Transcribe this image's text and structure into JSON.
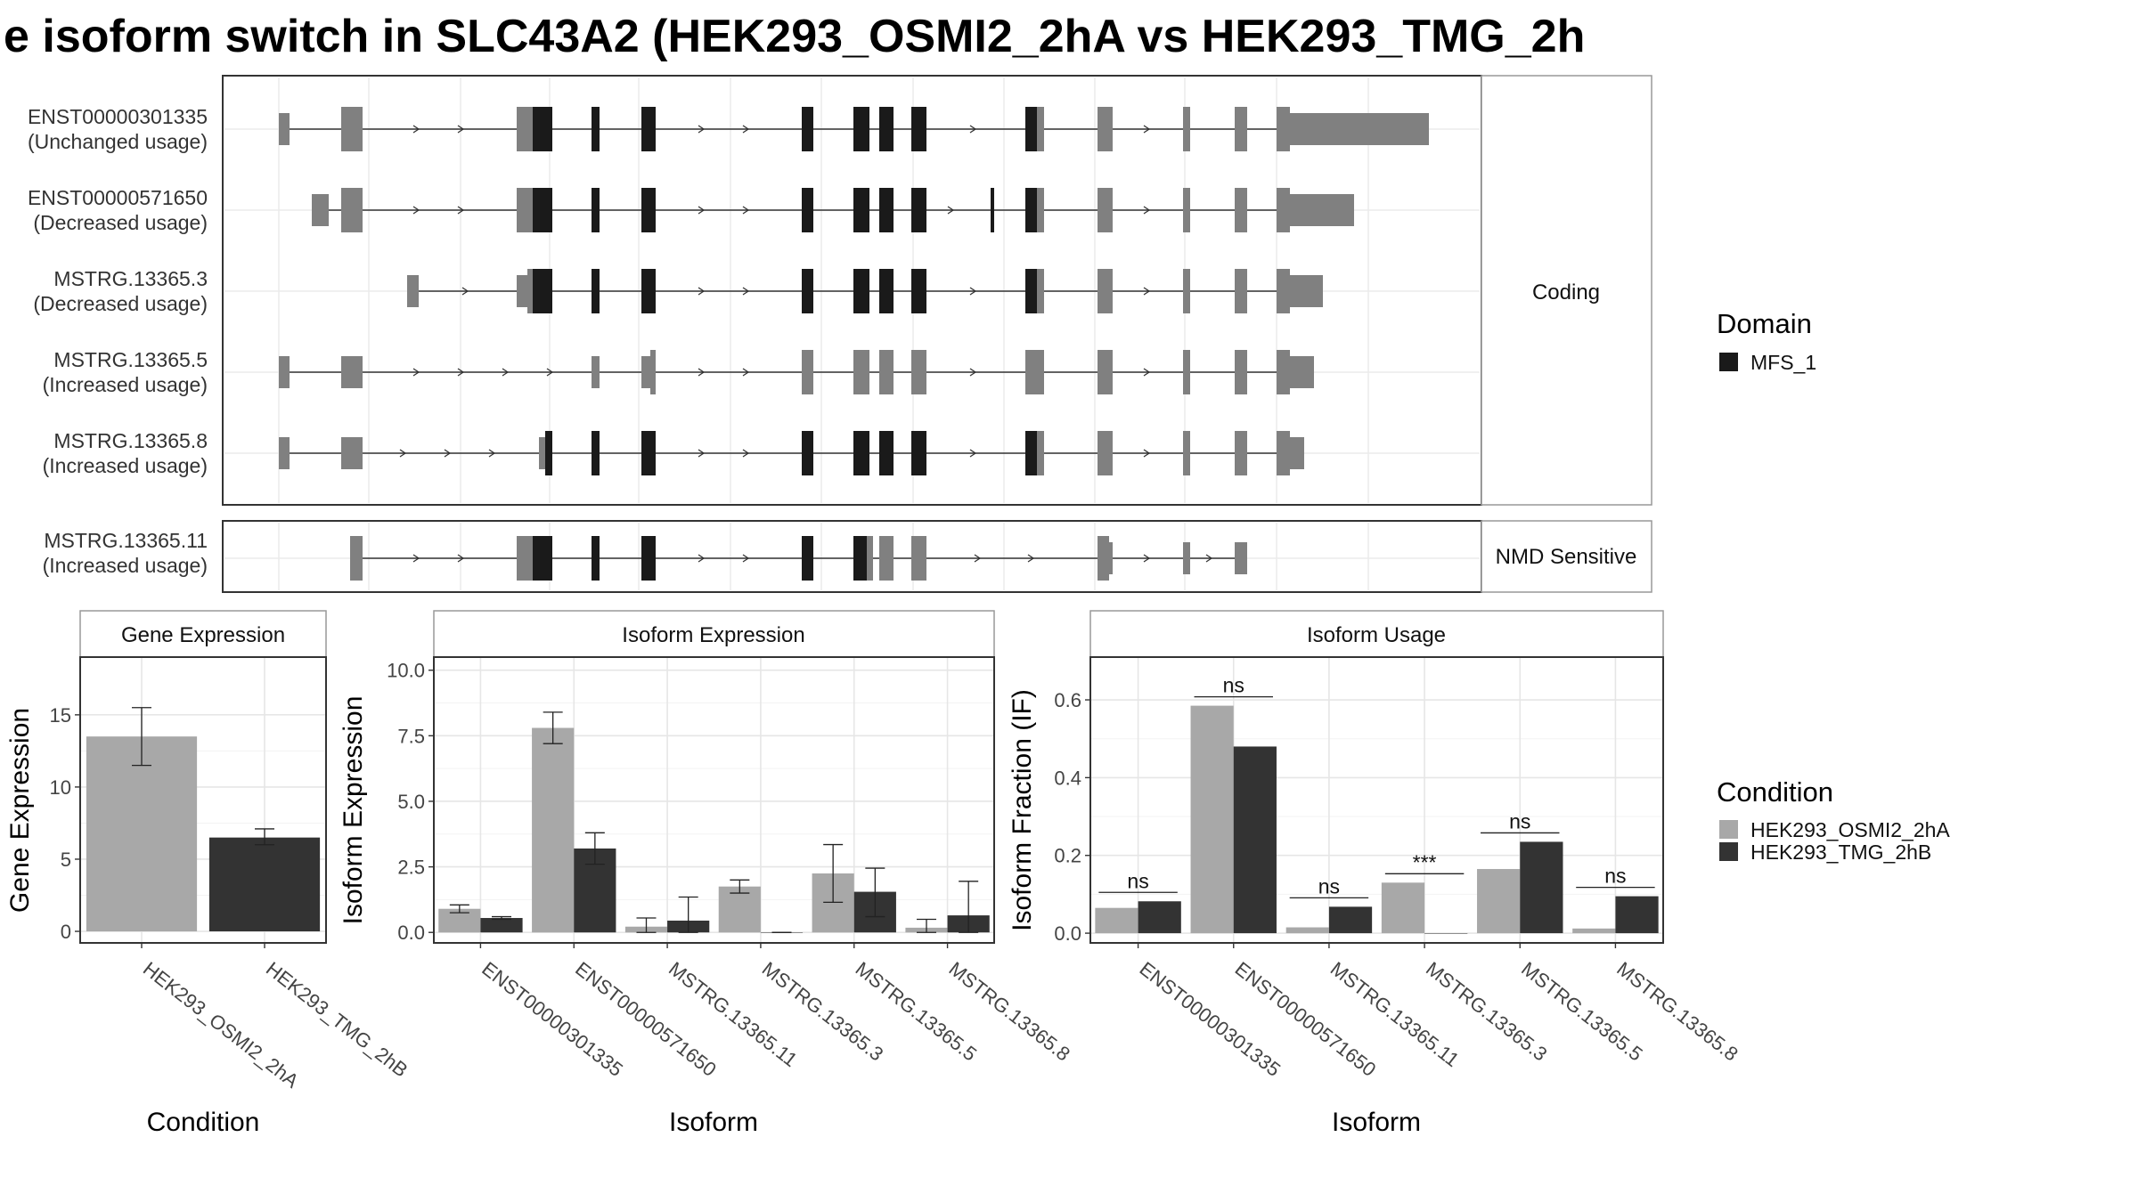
{
  "title": "e isoform switch in SLC43A2 (HEK293_OSMI2_2hA vs HEK293_TMG_2h",
  "colors": {
    "cond_a": "#a8a8a8",
    "cond_b": "#333333",
    "exon_noncoding": "#808080",
    "domain": "#1a1a1a"
  },
  "legend_domain": {
    "title": "Domain",
    "items": [
      "MFS_1"
    ]
  },
  "legend_condition": {
    "title": "Condition",
    "items": [
      "HEK293_OSMI2_2hA",
      "HEK293_TMG_2hB"
    ]
  },
  "panels": {
    "coding_strip": "Coding",
    "nmd_strip": "NMD Sensitive",
    "gene_expression": {
      "strip": "Gene Expression",
      "ylabel": "Gene Expression",
      "xlabel": "Condition"
    },
    "isoform_expression": {
      "strip": "Isoform Expression",
      "ylabel": "Isoform Expression",
      "xlabel": "Isoform"
    },
    "isoform_usage": {
      "strip": "Isoform Usage",
      "ylabel": "Isoform Fraction (IF)",
      "xlabel": "Isoform"
    }
  },
  "transcripts": [
    {
      "name": "ENST00000301335",
      "usage": "(Unchanged usage)"
    },
    {
      "name": "ENST00000571650",
      "usage": "(Decreased usage)"
    },
    {
      "name": "MSTRG.13365.3",
      "usage": "(Decreased usage)"
    },
    {
      "name": "MSTRG.13365.5",
      "usage": "(Increased usage)"
    },
    {
      "name": "MSTRG.13365.8",
      "usage": "(Increased usage)"
    },
    {
      "name": "MSTRG.13365.11",
      "usage": "(Increased usage)"
    }
  ],
  "chart_data": [
    {
      "type": "bar",
      "title": "Gene Expression",
      "xlabel": "Condition",
      "ylabel": "Gene Expression",
      "ylim": [
        -0.8,
        19
      ],
      "yticks": [
        0,
        5,
        10,
        15
      ],
      "categories": [
        "HEK293_OSMI2_2hA",
        "HEK293_TMG_2hB"
      ],
      "values": [
        13.5,
        6.5
      ],
      "err_low": [
        11.5,
        6.0
      ],
      "err_high": [
        15.5,
        7.1
      ]
    },
    {
      "type": "bar",
      "title": "Isoform Expression",
      "xlabel": "Isoform",
      "ylabel": "Isoform Expression",
      "ylim": [
        -0.4,
        10.5
      ],
      "yticks": [
        0.0,
        2.5,
        5.0,
        7.5,
        10.0
      ],
      "ytick_labels": [
        "0.0",
        "2.5",
        "5.0",
        "7.5",
        "10.0"
      ],
      "categories": [
        "ENST00000301335",
        "ENST00000571650",
        "MSTRG.13365.11",
        "MSTRG.13365.3",
        "MSTRG.13365.5",
        "MSTRG.13365.8"
      ],
      "series": [
        {
          "name": "HEK293_OSMI2_2hA",
          "values": [
            0.9,
            7.8,
            0.22,
            1.75,
            2.25,
            0.18
          ],
          "err_low": [
            0.75,
            7.2,
            0.0,
            1.5,
            1.15,
            0.0
          ],
          "err_high": [
            1.05,
            8.4,
            0.55,
            2.0,
            3.35,
            0.5
          ]
        },
        {
          "name": "HEK293_TMG_2hB",
          "values": [
            0.55,
            3.2,
            0.45,
            0.0,
            1.55,
            0.65
          ],
          "err_low": [
            0.5,
            2.6,
            0.0,
            0.0,
            0.6,
            0.0
          ],
          "err_high": [
            0.6,
            3.8,
            1.35,
            0.0,
            2.45,
            1.95
          ]
        }
      ]
    },
    {
      "type": "bar",
      "title": "Isoform Usage",
      "xlabel": "Isoform",
      "ylabel": "Isoform Fraction (IF)",
      "ylim": [
        -0.025,
        0.71
      ],
      "yticks": [
        0.0,
        0.2,
        0.4,
        0.6
      ],
      "ytick_labels": [
        "0.0",
        "0.2",
        "0.4",
        "0.6"
      ],
      "categories": [
        "ENST00000301335",
        "ENST00000571650",
        "MSTRG.13365.11",
        "MSTRG.13365.3",
        "MSTRG.13365.5",
        "MSTRG.13365.8"
      ],
      "series": [
        {
          "name": "HEK293_OSMI2_2hA",
          "values": [
            0.065,
            0.585,
            0.015,
            0.13,
            0.165,
            0.012
          ]
        },
        {
          "name": "HEK293_TMG_2hB",
          "values": [
            0.082,
            0.48,
            0.068,
            0.0,
            0.235,
            0.095
          ]
        }
      ],
      "significance": [
        "ns",
        "ns",
        "ns",
        "***",
        "ns",
        "ns"
      ]
    }
  ]
}
